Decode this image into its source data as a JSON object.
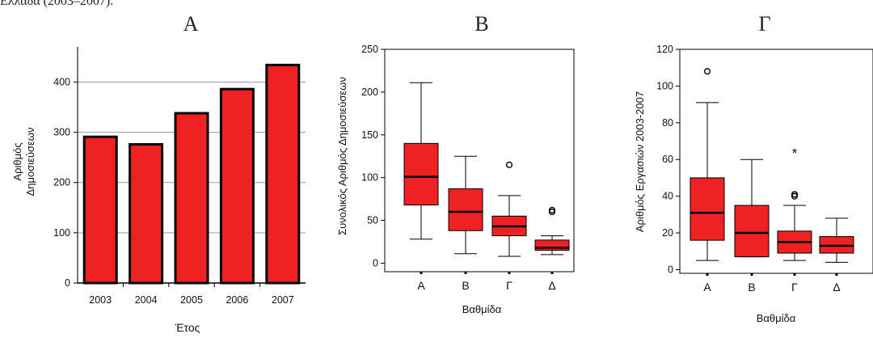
{
  "caption": "Ελλάδα (2003–2007).",
  "chart_data": [
    {
      "type": "bar",
      "title": "A",
      "categories": [
        "2003",
        "2004",
        "2005",
        "2006",
        "2007"
      ],
      "values": [
        291,
        276,
        338,
        386,
        434
      ],
      "xlabel": "Έτος",
      "ylabel": "Αριθμός Δημοσιεύσεων",
      "ylim": [
        0,
        470
      ],
      "yticks": [
        0,
        100,
        200,
        300,
        400
      ],
      "grid": true,
      "bar_color": "#ee2222"
    },
    {
      "type": "box",
      "title": "B",
      "categories": [
        "A",
        "B",
        "Γ",
        "Δ"
      ],
      "xlabel": "Βαθμίδα",
      "ylabel": "Συνολικός Αριθμός Δημοσιεύσεων",
      "ylim": [
        -10,
        250
      ],
      "yticks": [
        0,
        50,
        100,
        150,
        200,
        250
      ],
      "box_color": "#ee2222",
      "boxes": [
        {
          "min": 28,
          "q1": 68,
          "median": 101,
          "q3": 140,
          "max": 211,
          "outliers": [],
          "extremes": []
        },
        {
          "min": 11,
          "q1": 38,
          "median": 60,
          "q3": 87,
          "max": 125,
          "outliers": [],
          "extremes": []
        },
        {
          "min": 8,
          "q1": 32,
          "median": 43,
          "q3": 55,
          "max": 79,
          "outliers": [
            115
          ],
          "extremes": []
        },
        {
          "min": 10,
          "q1": 15,
          "median": 18,
          "q3": 27,
          "max": 32,
          "outliers": [
            60,
            62
          ],
          "extremes": []
        }
      ]
    },
    {
      "type": "box",
      "title": "Γ",
      "categories": [
        "A",
        "B",
        "Γ",
        "Δ"
      ],
      "xlabel": "Βαθμίδα",
      "ylabel": "Αριθμός Εργασιών 2003-2007",
      "ylim": [
        -2,
        120
      ],
      "yticks": [
        0,
        20,
        40,
        60,
        80,
        100,
        120
      ],
      "box_color": "#ee2222",
      "boxes": [
        {
          "min": 5,
          "q1": 16,
          "median": 31,
          "q3": 50,
          "max": 91,
          "outliers": [
            108
          ],
          "extremes": []
        },
        {
          "min": 7,
          "q1": 7,
          "median": 20,
          "q3": 35,
          "max": 60,
          "outliers": [],
          "extremes": []
        },
        {
          "min": 5,
          "q1": 9,
          "median": 15,
          "q3": 21,
          "max": 35,
          "outliers": [
            40,
            41
          ],
          "extremes": [
            64
          ]
        },
        {
          "min": 4,
          "q1": 9,
          "median": 13,
          "q3": 18,
          "max": 28,
          "outliers": [],
          "extremes": []
        }
      ]
    }
  ]
}
